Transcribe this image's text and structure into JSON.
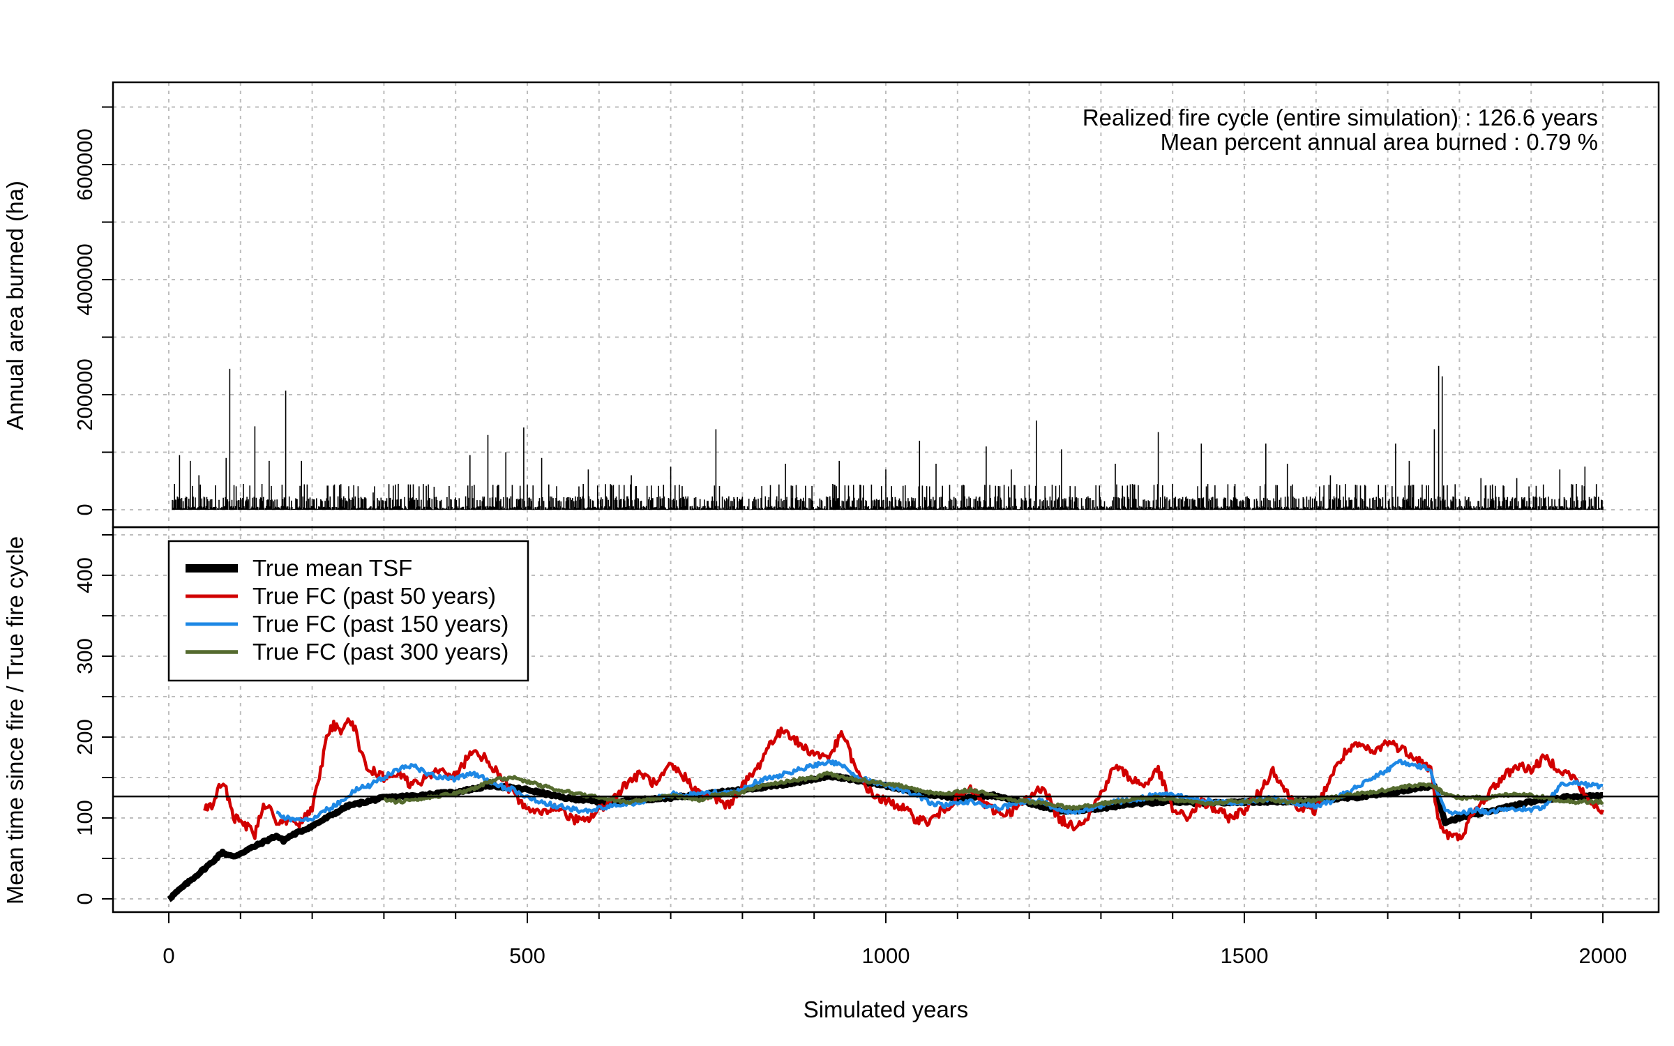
{
  "chart_data": [
    {
      "type": "bar",
      "ylabel": "Annual area burned (ha)",
      "xlabel": "",
      "xlim": [
        0,
        2000
      ],
      "ylim": [
        0,
        700000
      ],
      "y_ticks": [
        0,
        200000,
        400000,
        600000
      ],
      "x_ticks": [
        0,
        500,
        1000,
        1500,
        2000
      ],
      "grid": true,
      "color": "#000000",
      "annotations": [
        "Realized fire cycle (entire simulation) : 126.6 years",
        "Mean percent annual area burned : 0.79 %"
      ],
      "peaks": [
        {
          "x": 15,
          "y": 95000
        },
        {
          "x": 30,
          "y": 85000
        },
        {
          "x": 42,
          "y": 60000
        },
        {
          "x": 80,
          "y": 90000
        },
        {
          "x": 85,
          "y": 245000
        },
        {
          "x": 120,
          "y": 145000
        },
        {
          "x": 140,
          "y": 85000
        },
        {
          "x": 163,
          "y": 207000
        },
        {
          "x": 185,
          "y": 85000
        },
        {
          "x": 220,
          "y": 20000
        },
        {
          "x": 285,
          "y": 30000
        },
        {
          "x": 320,
          "y": 45000
        },
        {
          "x": 370,
          "y": 40000
        },
        {
          "x": 420,
          "y": 95000
        },
        {
          "x": 445,
          "y": 130000
        },
        {
          "x": 470,
          "y": 100000
        },
        {
          "x": 495,
          "y": 143000
        },
        {
          "x": 520,
          "y": 90000
        },
        {
          "x": 585,
          "y": 70000
        },
        {
          "x": 645,
          "y": 60000
        },
        {
          "x": 700,
          "y": 75000
        },
        {
          "x": 763,
          "y": 140000
        },
        {
          "x": 860,
          "y": 80000
        },
        {
          "x": 935,
          "y": 85000
        },
        {
          "x": 1000,
          "y": 70000
        },
        {
          "x": 1047,
          "y": 120000
        },
        {
          "x": 1070,
          "y": 80000
        },
        {
          "x": 1140,
          "y": 110000
        },
        {
          "x": 1175,
          "y": 70000
        },
        {
          "x": 1210,
          "y": 155000
        },
        {
          "x": 1245,
          "y": 105000
        },
        {
          "x": 1320,
          "y": 80000
        },
        {
          "x": 1380,
          "y": 135000
        },
        {
          "x": 1440,
          "y": 115000
        },
        {
          "x": 1530,
          "y": 115000
        },
        {
          "x": 1560,
          "y": 80000
        },
        {
          "x": 1620,
          "y": 60000
        },
        {
          "x": 1711,
          "y": 115000
        },
        {
          "x": 1730,
          "y": 85000
        },
        {
          "x": 1765,
          "y": 140000
        },
        {
          "x": 1771,
          "y": 250000
        },
        {
          "x": 1776,
          "y": 232000
        },
        {
          "x": 1830,
          "y": 55000
        },
        {
          "x": 1880,
          "y": 55000
        },
        {
          "x": 1940,
          "y": 70000
        },
        {
          "x": 1975,
          "y": 75000
        }
      ]
    },
    {
      "type": "line",
      "ylabel": "Mean time since fire / True fire cycle",
      "xlabel": "Simulated years",
      "xlim": [
        0,
        2000
      ],
      "ylim": [
        0,
        460
      ],
      "y_ticks": [
        0,
        100,
        200,
        300,
        400
      ],
      "x_ticks": [
        0,
        500,
        1000,
        1500,
        2000
      ],
      "grid": true,
      "legend_position": "top-left",
      "hline": {
        "y": 126.6,
        "color": "#000000"
      },
      "series": [
        {
          "name": "True mean TSF",
          "color": "#000000",
          "x": [
            0,
            20,
            40,
            60,
            75,
            80,
            90,
            120,
            150,
            160,
            170,
            200,
            250,
            300,
            350,
            400,
            450,
            500,
            550,
            600,
            650,
            700,
            750,
            800,
            850,
            900,
            920,
            950,
            1000,
            1050,
            1100,
            1150,
            1200,
            1250,
            1300,
            1350,
            1400,
            1450,
            1500,
            1550,
            1600,
            1650,
            1700,
            1750,
            1765,
            1780,
            1800,
            1850,
            1900,
            1950,
            2000
          ],
          "y": [
            0,
            15,
            30,
            45,
            58,
            55,
            52,
            65,
            78,
            72,
            78,
            90,
            115,
            125,
            128,
            132,
            140,
            135,
            125,
            120,
            122,
            125,
            130,
            135,
            140,
            148,
            152,
            148,
            140,
            130,
            125,
            128,
            118,
            108,
            112,
            118,
            120,
            118,
            120,
            120,
            122,
            125,
            130,
            138,
            140,
            95,
            100,
            110,
            120,
            126,
            128
          ]
        },
        {
          "name": "True FC (past 50 years)",
          "color": "#d10000",
          "x": [
            50,
            60,
            70,
            80,
            90,
            100,
            110,
            120,
            130,
            140,
            150,
            160,
            170,
            180,
            190,
            200,
            210,
            220,
            230,
            240,
            250,
            260,
            270,
            280,
            300,
            320,
            340,
            360,
            380,
            400,
            420,
            440,
            460,
            480,
            500,
            520,
            540,
            560,
            580,
            600,
            620,
            640,
            660,
            680,
            700,
            720,
            740,
            760,
            780,
            800,
            820,
            840,
            860,
            880,
            900,
            920,
            940,
            960,
            980,
            1000,
            1020,
            1040,
            1060,
            1080,
            1100,
            1120,
            1140,
            1160,
            1180,
            1200,
            1220,
            1240,
            1260,
            1280,
            1300,
            1320,
            1340,
            1360,
            1380,
            1400,
            1420,
            1440,
            1460,
            1480,
            1500,
            1520,
            1540,
            1560,
            1580,
            1600,
            1620,
            1640,
            1660,
            1680,
            1700,
            1720,
            1740,
            1760,
            1770,
            1780,
            1800,
            1820,
            1840,
            1860,
            1880,
            1900,
            1920,
            1940,
            1960,
            1980,
            2000
          ],
          "y": [
            113,
            115,
            140,
            135,
            100,
            95,
            90,
            80,
            110,
            120,
            90,
            95,
            100,
            90,
            100,
            110,
            150,
            200,
            215,
            205,
            225,
            210,
            175,
            160,
            150,
            155,
            140,
            150,
            160,
            150,
            180,
            175,
            155,
            130,
            110,
            105,
            115,
            100,
            95,
            110,
            125,
            145,
            155,
            140,
            165,
            150,
            130,
            125,
            115,
            140,
            160,
            195,
            210,
            190,
            180,
            175,
            205,
            155,
            130,
            120,
            115,
            100,
            95,
            110,
            125,
            135,
            115,
            105,
            110,
            125,
            140,
            100,
            90,
            100,
            130,
            165,
            150,
            140,
            160,
            110,
            100,
            120,
            110,
            100,
            110,
            130,
            160,
            130,
            110,
            110,
            150,
            180,
            190,
            180,
            195,
            185,
            175,
            160,
            100,
            80,
            75,
            105,
            130,
            150,
            165,
            160,
            175,
            160,
            150,
            120,
            110
          ]
        },
        {
          "name": "True FC (past 150 years)",
          "color": "#1e88e5",
          "x": [
            150,
            160,
            180,
            200,
            220,
            240,
            260,
            280,
            300,
            320,
            340,
            360,
            380,
            400,
            420,
            440,
            460,
            480,
            500,
            520,
            540,
            560,
            580,
            600,
            620,
            640,
            660,
            680,
            700,
            720,
            740,
            760,
            780,
            800,
            820,
            840,
            860,
            880,
            900,
            920,
            940,
            960,
            980,
            1000,
            1020,
            1040,
            1060,
            1080,
            1100,
            1120,
            1140,
            1160,
            1180,
            1200,
            1220,
            1240,
            1260,
            1280,
            1300,
            1320,
            1340,
            1360,
            1380,
            1400,
            1420,
            1440,
            1460,
            1480,
            1500,
            1520,
            1540,
            1560,
            1580,
            1600,
            1620,
            1640,
            1660,
            1680,
            1700,
            1720,
            1740,
            1760,
            1770,
            1780,
            1800,
            1820,
            1840,
            1860,
            1880,
            1900,
            1920,
            1940,
            1960,
            1980,
            2000
          ],
          "y": [
            110,
            100,
            98,
            100,
            110,
            120,
            135,
            140,
            150,
            160,
            165,
            155,
            150,
            148,
            155,
            150,
            140,
            135,
            125,
            120,
            115,
            112,
            108,
            112,
            115,
            118,
            120,
            125,
            130,
            128,
            130,
            132,
            130,
            135,
            145,
            150,
            155,
            160,
            165,
            170,
            165,
            150,
            145,
            140,
            135,
            130,
            120,
            115,
            118,
            120,
            115,
            112,
            118,
            122,
            120,
            110,
            108,
            110,
            115,
            120,
            122,
            125,
            130,
            128,
            125,
            122,
            120,
            118,
            120,
            122,
            125,
            120,
            118,
            115,
            120,
            130,
            140,
            150,
            160,
            170,
            165,
            160,
            130,
            110,
            105,
            110,
            108,
            110,
            112,
            110,
            115,
            140,
            145,
            140,
            140
          ]
        },
        {
          "name": "True FC (past 300 years)",
          "color": "#556b2f",
          "x": [
            300,
            320,
            340,
            360,
            380,
            400,
            420,
            440,
            460,
            480,
            500,
            520,
            540,
            560,
            580,
            600,
            620,
            640,
            660,
            680,
            700,
            720,
            740,
            760,
            780,
            800,
            820,
            840,
            860,
            880,
            900,
            920,
            940,
            960,
            980,
            1000,
            1020,
            1040,
            1060,
            1080,
            1100,
            1120,
            1140,
            1160,
            1180,
            1200,
            1220,
            1240,
            1260,
            1280,
            1300,
            1320,
            1340,
            1360,
            1380,
            1400,
            1420,
            1440,
            1460,
            1480,
            1500,
            1520,
            1540,
            1560,
            1580,
            1600,
            1620,
            1640,
            1660,
            1680,
            1700,
            1720,
            1740,
            1760,
            1780,
            1800,
            1820,
            1840,
            1860,
            1880,
            1900,
            1920,
            1940,
            1960,
            1980,
            2000
          ],
          "y": [
            122,
            120,
            122,
            125,
            128,
            130,
            135,
            142,
            148,
            150,
            145,
            140,
            135,
            132,
            128,
            125,
            122,
            120,
            122,
            125,
            128,
            125,
            122,
            128,
            130,
            132,
            138,
            142,
            145,
            148,
            150,
            155,
            150,
            148,
            145,
            142,
            140,
            135,
            132,
            130,
            132,
            135,
            130,
            125,
            122,
            120,
            118,
            115,
            112,
            115,
            118,
            120,
            122,
            125,
            125,
            122,
            120,
            118,
            118,
            120,
            120,
            122,
            122,
            120,
            122,
            122,
            125,
            128,
            130,
            132,
            135,
            138,
            140,
            142,
            130,
            125,
            125,
            125,
            128,
            130,
            128,
            125,
            122,
            120,
            120,
            120
          ]
        }
      ]
    }
  ]
}
